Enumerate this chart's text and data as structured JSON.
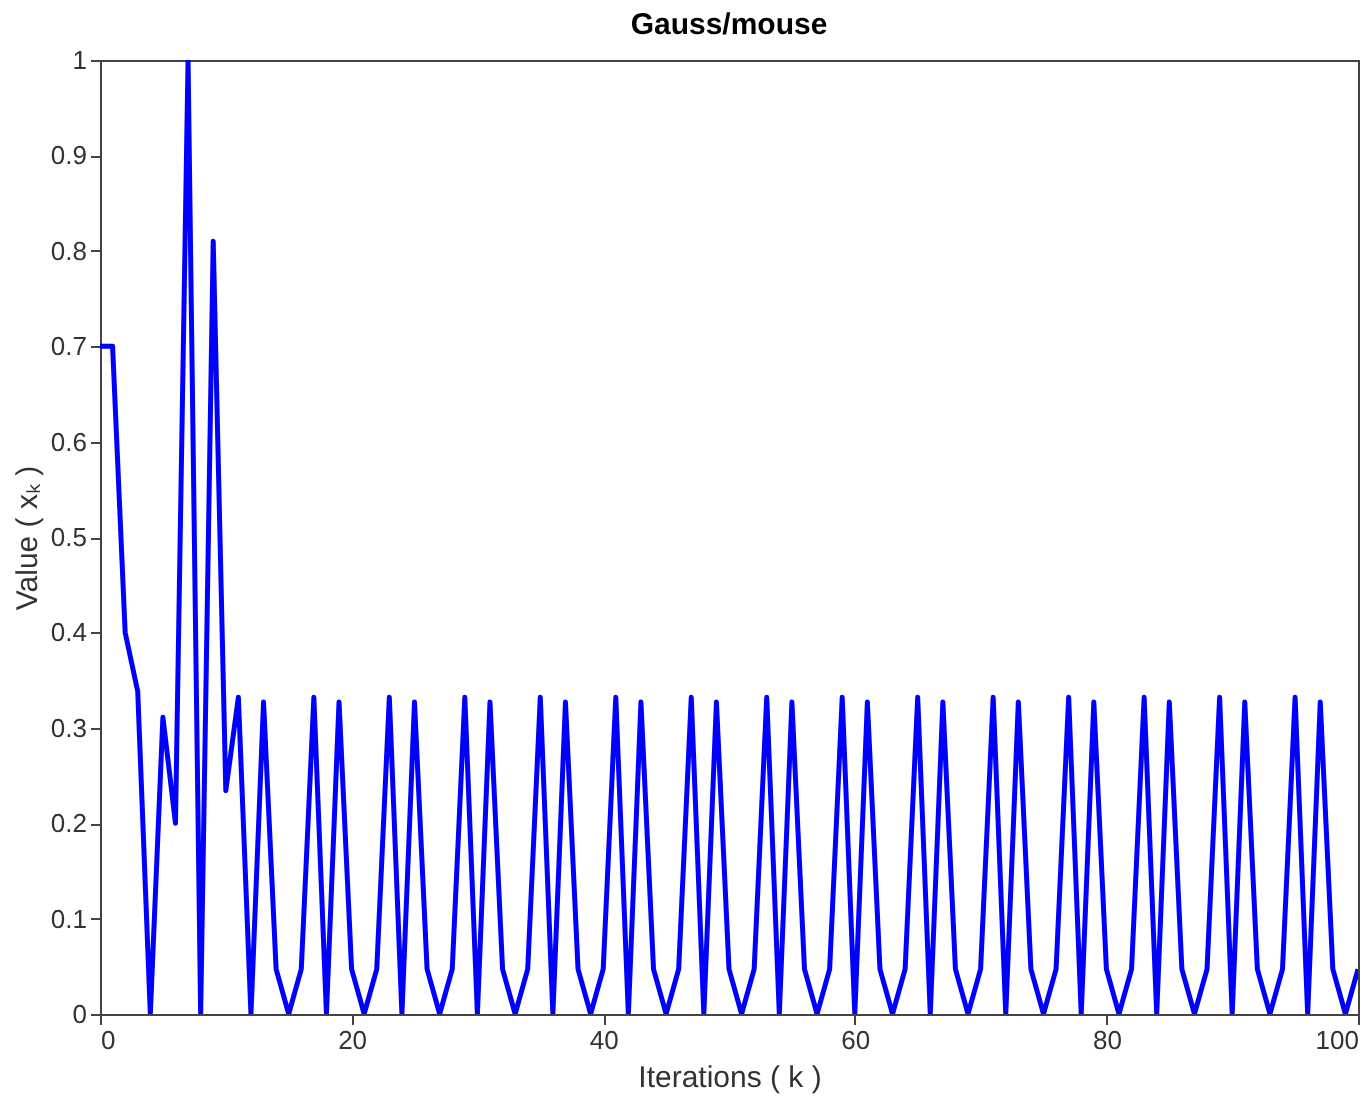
{
  "chart_data": {
    "type": "line",
    "title": "Gauss/mouse",
    "xlabel": "Iterations ( k )",
    "ylabel": "Value ( xₖ )",
    "x": [
      0,
      1,
      2,
      3,
      4,
      5,
      6,
      7,
      8,
      9,
      10,
      11,
      12,
      13,
      14,
      15,
      16,
      17,
      18,
      19,
      20,
      21,
      22,
      23,
      24,
      25,
      26,
      27,
      28,
      29,
      30,
      31,
      32,
      33,
      34,
      35,
      36,
      37,
      38,
      39,
      40,
      41,
      42,
      43,
      44,
      45,
      46,
      47,
      48,
      49,
      50,
      51,
      52,
      53,
      54,
      55,
      56,
      57,
      58,
      59,
      60,
      61,
      62,
      63,
      64,
      65,
      66,
      67,
      68,
      69,
      70,
      71,
      72,
      73,
      74,
      75,
      76,
      77,
      78,
      79,
      80,
      81,
      82,
      83,
      84,
      85,
      86,
      87,
      88,
      89,
      90,
      91,
      92,
      93,
      94,
      95,
      96,
      97,
      98,
      99,
      100
    ],
    "series": [
      {
        "color": "#0000ff",
        "values": [
          0.7,
          0.7,
          0.4,
          0.338,
          0,
          0.311,
          0.2,
          1,
          0,
          0.81,
          0.234,
          0.332,
          0,
          0.327,
          0.047,
          0,
          0.047,
          0.332,
          0,
          0.327,
          0.047,
          0,
          0.047,
          0.332,
          0,
          0.327,
          0.047,
          0,
          0.047,
          0.332,
          0,
          0.327,
          0.047,
          0,
          0.047,
          0.332,
          0,
          0.327,
          0.047,
          0,
          0.047,
          0.332,
          0,
          0.327,
          0.047,
          0,
          0.047,
          0.332,
          0,
          0.327,
          0.047,
          0,
          0.047,
          0.332,
          0,
          0.327,
          0.047,
          0,
          0.047,
          0.332,
          0,
          0.327,
          0.047,
          0,
          0.047,
          0.332,
          0,
          0.327,
          0.047,
          0,
          0.047,
          0.332,
          0,
          0.327,
          0.047,
          0,
          0.047,
          0.332,
          0,
          0.327,
          0.047,
          0,
          0.047,
          0.332,
          0,
          0.327,
          0.047,
          0,
          0.047,
          0.332,
          0,
          0.327,
          0.047,
          0,
          0.047,
          0.332,
          0,
          0.327,
          0.047,
          0,
          0.047
        ]
      }
    ],
    "xlim": [
      0,
      100
    ],
    "xticks": [
      0,
      20,
      40,
      60,
      80,
      100
    ],
    "ylim": [
      0,
      1
    ],
    "yticks": [
      0,
      0.1,
      0.2,
      0.3,
      0.4,
      0.5,
      0.6,
      0.7,
      0.8,
      0.9,
      1
    ],
    "grid": false,
    "legend": false,
    "marker": "none",
    "line_style": "solid"
  }
}
